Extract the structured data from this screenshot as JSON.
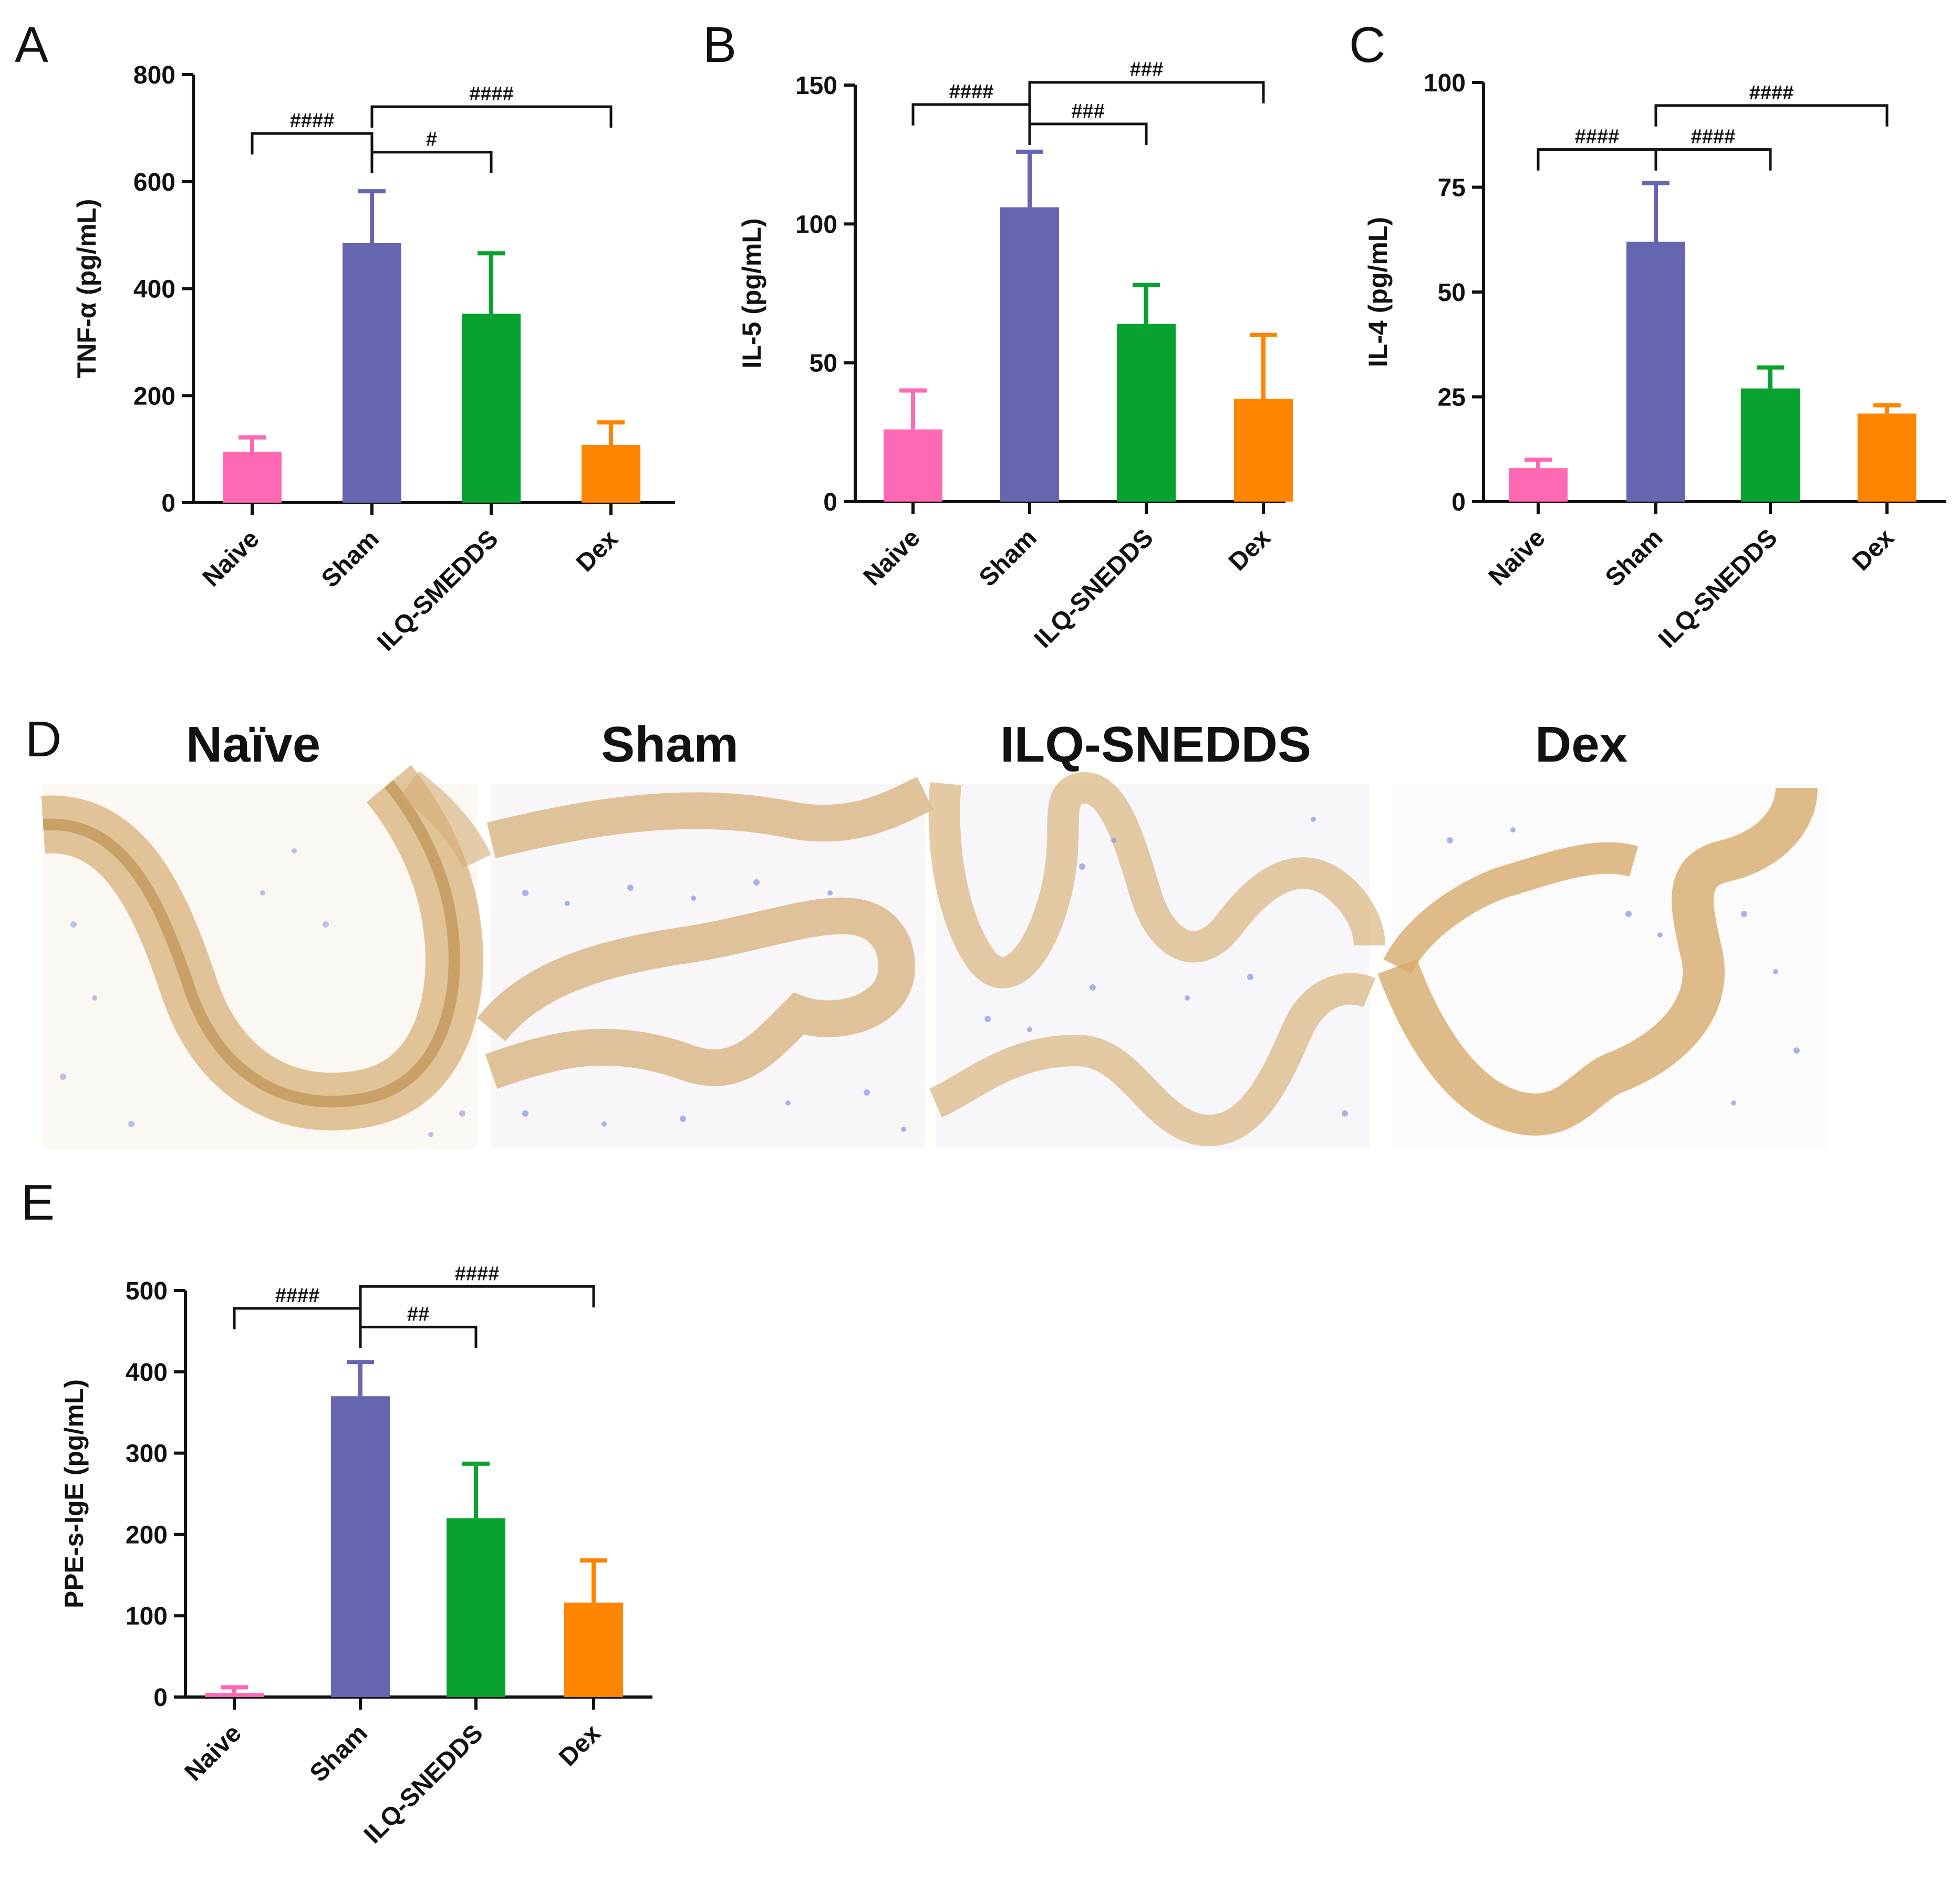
{
  "panels": {
    "A": "A",
    "B": "B",
    "C": "C",
    "D": "D",
    "E": "E"
  },
  "colors": {
    "Naive": "#ff69b4",
    "Sham": "#6666b0",
    "ILQ": "#07a22f",
    "Dex": "#ff8400"
  },
  "chart_data": [
    {
      "id": "A",
      "type": "bar",
      "ylabel": "TNF-α (pg/mL)",
      "categories": [
        "Naive",
        "Sham",
        "ILQ-SMEDDS",
        "Dex"
      ],
      "values": [
        95,
        485,
        353,
        108
      ],
      "errors": [
        27,
        97,
        113,
        42
      ],
      "ylim": [
        0,
        800
      ],
      "yticks": [
        0,
        200,
        400,
        600,
        800
      ],
      "significance": [
        {
          "from": 0,
          "to": 1,
          "label": "####",
          "y": 690
        },
        {
          "from": 1,
          "to": 2,
          "label": "#",
          "y": 655
        },
        {
          "from": 1,
          "to": 3,
          "label": "####",
          "y": 740
        }
      ]
    },
    {
      "id": "B",
      "type": "bar",
      "ylabel": "IL-5 (pg/mL)",
      "categories": [
        "Naive",
        "Sham",
        "ILQ-SNEDDS",
        "Dex"
      ],
      "values": [
        26,
        106,
        64,
        37
      ],
      "errors": [
        14,
        20,
        14,
        23
      ],
      "ylim": [
        0,
        150
      ],
      "yticks": [
        0,
        50,
        100,
        150
      ],
      "significance": [
        {
          "from": 0,
          "to": 1,
          "label": "####",
          "y": 143
        },
        {
          "from": 1,
          "to": 2,
          "label": "###",
          "y": 136
        },
        {
          "from": 1,
          "to": 3,
          "label": "###",
          "y": 151
        }
      ]
    },
    {
      "id": "C",
      "type": "bar",
      "ylabel": "IL-4 (pg/mL)",
      "categories": [
        "Naive",
        "Sham",
        "ILQ-SNEDDS",
        "Dex"
      ],
      "values": [
        8,
        62,
        27,
        21
      ],
      "errors": [
        2,
        14,
        5,
        2
      ],
      "ylim": [
        0,
        100
      ],
      "yticks": [
        0,
        25,
        50,
        75,
        100
      ],
      "significance": [
        {
          "from": 0,
          "to": 1,
          "label": "####",
          "y": 84
        },
        {
          "from": 1,
          "to": 2,
          "label": "####",
          "y": 84
        },
        {
          "from": 1,
          "to": 3,
          "label": "####",
          "y": 94.5
        }
      ]
    },
    {
      "id": "E",
      "type": "bar",
      "ylabel": "PPE-s-IgE (pg/mL)",
      "categories": [
        "Naive",
        "Sham",
        "ILQ-SNEDDS",
        "Dex"
      ],
      "values": [
        5,
        370,
        220,
        116
      ],
      "errors": [
        7,
        42,
        67,
        52
      ],
      "ylim": [
        0,
        500
      ],
      "yticks": [
        0,
        100,
        200,
        300,
        400,
        500
      ],
      "significance": [
        {
          "from": 0,
          "to": 1,
          "label": "####",
          "y": 478
        },
        {
          "from": 1,
          "to": 2,
          "label": "##",
          "y": 455
        },
        {
          "from": 1,
          "to": 3,
          "label": "####",
          "y": 505
        }
      ]
    }
  ],
  "histology": {
    "titles": [
      "Naïve",
      "Sham",
      "ILQ-SNEDDS",
      "Dex"
    ]
  }
}
